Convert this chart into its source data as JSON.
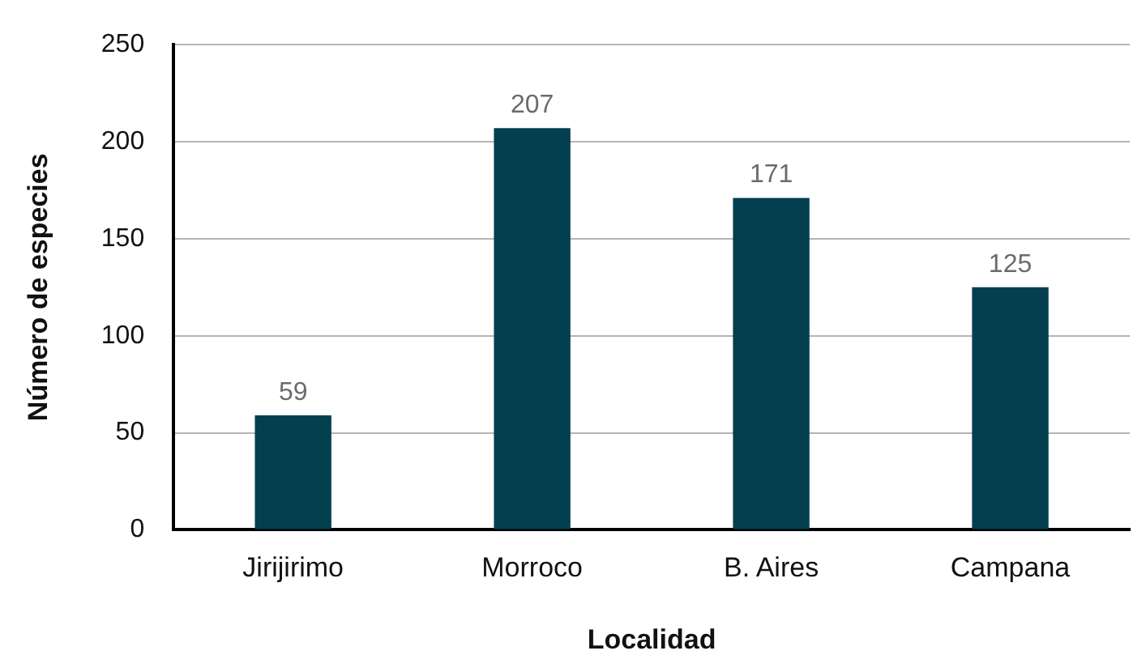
{
  "chart_data": {
    "type": "bar",
    "xlabel": "Localidad",
    "ylabel": "Número de especies",
    "categories": [
      "Jirijirimo",
      "Morroco",
      "B. Aires",
      "Campana"
    ],
    "values": [
      59,
      207,
      171,
      125
    ],
    "color": "#033f4f",
    "ylim": [
      0,
      250
    ],
    "yticks": [
      0,
      50,
      100,
      150,
      200,
      250
    ],
    "grid": "y",
    "data_labels": true
  }
}
